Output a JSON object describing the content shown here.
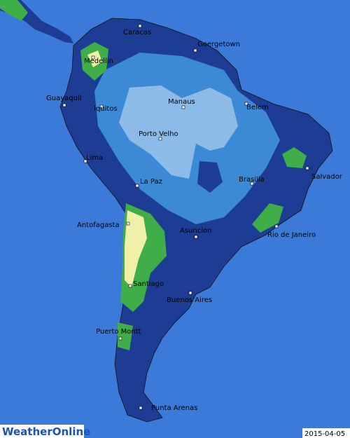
{
  "cities": [
    "Caracas",
    "Goergetown",
    "Medellin",
    "Guayaquil",
    "Iquitos",
    "Manaus",
    "Belem",
    "Porto Velho",
    "Salvador",
    "Lima",
    "La Paz",
    "Brasilia",
    "Antofagasta",
    "Asuncion",
    "Rio de Janeiro",
    "Santiago",
    "Buenos Aires",
    "Puerto Montt",
    "Punta Arenas"
  ],
  "logo": "WeatherOnline",
  "date": "2015-04-05"
}
